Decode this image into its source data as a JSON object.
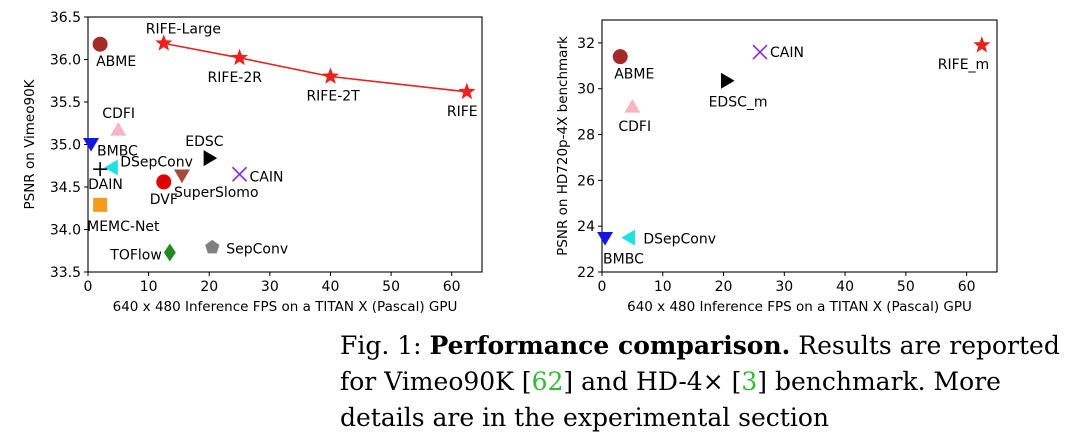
{
  "chart_data": [
    {
      "type": "scatter",
      "title": "",
      "xlabel": "640 x 480 Inference FPS on a TITAN X (Pascal) GPU",
      "ylabel": "PSNR on Vimeo90K",
      "xlim": [
        0,
        65
      ],
      "ylim": [
        33.5,
        36.5
      ],
      "xticks": [
        0,
        10,
        20,
        30,
        40,
        50,
        60
      ],
      "yticks": [
        33.5,
        34.0,
        34.5,
        35.0,
        35.5,
        36.0,
        36.5
      ],
      "ytick_labels": [
        "33.5",
        "34.0",
        "34.5",
        "35.0",
        "35.5",
        "36.0",
        "36.5"
      ],
      "series": [
        {
          "name": "ABME",
          "x": 2.0,
          "y": 36.18,
          "marker": "circle",
          "color": "#a52a2a"
        },
        {
          "name": "RIFE-Large",
          "x": 12.5,
          "y": 36.19,
          "marker": "star",
          "color": "#e8221c"
        },
        {
          "name": "RIFE-2R",
          "x": 25.0,
          "y": 36.02,
          "marker": "star",
          "color": "#e8221c"
        },
        {
          "name": "RIFE-2T",
          "x": 40.0,
          "y": 35.8,
          "marker": "star",
          "color": "#e8221c"
        },
        {
          "name": "RIFE",
          "x": 62.5,
          "y": 35.62,
          "marker": "star",
          "color": "#e8221c"
        },
        {
          "name": "CDFI",
          "x": 5.0,
          "y": 35.17,
          "marker": "triangle-up",
          "color": "#f4b6c2"
        },
        {
          "name": "BMBC",
          "x": 0.5,
          "y": 35.01,
          "marker": "triangle-down",
          "color": "#1515e0"
        },
        {
          "name": "EDSC",
          "x": 20.0,
          "y": 34.84,
          "marker": "triangle-right",
          "color": "#000000"
        },
        {
          "name": "DSepConv",
          "x": 4.0,
          "y": 34.73,
          "marker": "triangle-left",
          "color": "#20e0e0"
        },
        {
          "name": "DAIN",
          "x": 2.0,
          "y": 34.71,
          "marker": "plus",
          "color": "#000000"
        },
        {
          "name": "SuperSlomo",
          "x": 15.5,
          "y": 34.64,
          "marker": "triangle-down",
          "color": "#a24a3c"
        },
        {
          "name": "CAIN",
          "x": 25.0,
          "y": 34.65,
          "marker": "x",
          "color": "#8a2be2"
        },
        {
          "name": "DVF",
          "x": 12.5,
          "y": 34.56,
          "marker": "circle",
          "color": "#e00000"
        },
        {
          "name": "MEMC-Net",
          "x": 2.0,
          "y": 34.29,
          "marker": "square",
          "color": "#f59a1c"
        },
        {
          "name": "SepConv",
          "x": 20.5,
          "y": 33.79,
          "marker": "pentagon",
          "color": "#808080"
        },
        {
          "name": "TOFlow",
          "x": 13.5,
          "y": 33.73,
          "marker": "diamond",
          "color": "#238a23"
        }
      ],
      "line": {
        "members": [
          "RIFE-Large",
          "RIFE-2R",
          "RIFE-2T",
          "RIFE"
        ],
        "color": "#e8221c"
      }
    },
    {
      "type": "scatter",
      "title": "",
      "xlabel": "640 x 480 Inference FPS on a TITAN X (Pascal) GPU",
      "ylabel": "PSNR on HD720p-4X benchmark",
      "xlim": [
        0,
        65
      ],
      "ylim": [
        22,
        33
      ],
      "xticks": [
        0,
        10,
        20,
        30,
        40,
        50,
        60
      ],
      "yticks": [
        22,
        24,
        26,
        28,
        30,
        32
      ],
      "ytick_labels": [
        "22",
        "24",
        "26",
        "28",
        "30",
        "32"
      ],
      "series": [
        {
          "name": "ABME",
          "x": 3.0,
          "y": 31.4,
          "marker": "circle",
          "color": "#a52a2a"
        },
        {
          "name": "CAIN",
          "x": 26.0,
          "y": 31.6,
          "marker": "x",
          "color": "#8a2be2"
        },
        {
          "name": "RIFE_m",
          "x": 62.5,
          "y": 31.9,
          "marker": "star",
          "color": "#e8221c"
        },
        {
          "name": "EDSC_m",
          "x": 20.5,
          "y": 30.35,
          "marker": "triangle-right",
          "color": "#000000"
        },
        {
          "name": "CDFI",
          "x": 5.0,
          "y": 29.2,
          "marker": "triangle-up",
          "color": "#f4b6c2"
        },
        {
          "name": "DSepConv",
          "x": 4.5,
          "y": 23.5,
          "marker": "triangle-left",
          "color": "#20e0e0"
        },
        {
          "name": "BMBC",
          "x": 0.5,
          "y": 23.5,
          "marker": "triangle-down",
          "color": "#1515e0"
        }
      ]
    }
  ],
  "caption": {
    "prefix": "Fig. 1:",
    "bold": "Performance comparison.",
    "text1": "Results are reported for Vimeo90K [",
    "cite1": "62",
    "text2": "] and HD-4× [",
    "cite2": "3",
    "text3": "] benchmark. More details are in the experimental section"
  }
}
